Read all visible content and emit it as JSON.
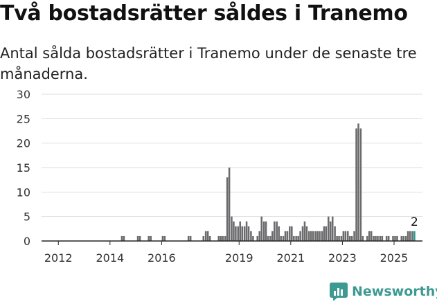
{
  "header": {
    "title": "Två bostadsrätter såldes i Tranemo",
    "subtitle": "Antal sålda bostadsrätter i Tranemo under de senaste tre månaderna."
  },
  "brand": {
    "name": "Newsworthy",
    "icon": "newsworthy-chart-logo-icon",
    "color": "#3d9a92"
  },
  "colors": {
    "bar": "#6b6b6d",
    "highlight": "#2a9d8f",
    "grid": "#dddddd",
    "axis": "#222222"
  },
  "chart_data": {
    "type": "bar",
    "x_unit": "decimal year (monthly bars)",
    "ylim": [
      0,
      30
    ],
    "yticks": [
      0,
      5,
      10,
      15,
      20,
      25,
      30
    ],
    "xlim": [
      2011.35,
      2026.1
    ],
    "xticks": [
      {
        "value": 2012.0,
        "label": "2012"
      },
      {
        "value": 2014.0,
        "label": "2014"
      },
      {
        "value": 2016.0,
        "label": "2016"
      },
      {
        "value": 2019.0,
        "label": "2019"
      },
      {
        "value": 2021.0,
        "label": "2021"
      },
      {
        "value": 2023.0,
        "label": "2023"
      },
      {
        "value": 2025.0,
        "label": "2025"
      }
    ],
    "grid": true,
    "last_value_label": "2",
    "bars": [
      [
        2014.46,
        1
      ],
      [
        2014.54,
        1
      ],
      [
        2015.08,
        1
      ],
      [
        2015.16,
        1
      ],
      [
        2015.5,
        1
      ],
      [
        2015.58,
        1
      ],
      [
        2016.04,
        1
      ],
      [
        2016.12,
        1
      ],
      [
        2017.04,
        1
      ],
      [
        2017.12,
        1
      ],
      [
        2017.62,
        1
      ],
      [
        2017.71,
        2
      ],
      [
        2017.79,
        2
      ],
      [
        2017.87,
        1
      ],
      [
        2018.21,
        1
      ],
      [
        2018.29,
        1
      ],
      [
        2018.37,
        1
      ],
      [
        2018.46,
        1
      ],
      [
        2018.54,
        13
      ],
      [
        2018.62,
        15
      ],
      [
        2018.71,
        5
      ],
      [
        2018.79,
        4
      ],
      [
        2018.87,
        3
      ],
      [
        2018.96,
        3
      ],
      [
        2019.04,
        4
      ],
      [
        2019.12,
        3
      ],
      [
        2019.21,
        3
      ],
      [
        2019.29,
        4
      ],
      [
        2019.37,
        3
      ],
      [
        2019.46,
        2
      ],
      [
        2019.54,
        1
      ],
      [
        2019.62,
        0
      ],
      [
        2019.71,
        1
      ],
      [
        2019.79,
        2
      ],
      [
        2019.87,
        5
      ],
      [
        2019.96,
        4
      ],
      [
        2020.04,
        4
      ],
      [
        2020.12,
        1
      ],
      [
        2020.21,
        1
      ],
      [
        2020.29,
        2
      ],
      [
        2020.37,
        4
      ],
      [
        2020.46,
        4
      ],
      [
        2020.54,
        3
      ],
      [
        2020.62,
        1
      ],
      [
        2020.71,
        1
      ],
      [
        2020.79,
        2
      ],
      [
        2020.87,
        2
      ],
      [
        2020.96,
        3
      ],
      [
        2021.04,
        3
      ],
      [
        2021.12,
        1
      ],
      [
        2021.21,
        1
      ],
      [
        2021.29,
        1
      ],
      [
        2021.37,
        2
      ],
      [
        2021.46,
        3
      ],
      [
        2021.54,
        4
      ],
      [
        2021.62,
        3
      ],
      [
        2021.71,
        2
      ],
      [
        2021.79,
        2
      ],
      [
        2021.87,
        2
      ],
      [
        2021.96,
        2
      ],
      [
        2022.04,
        2
      ],
      [
        2022.12,
        2
      ],
      [
        2022.21,
        2
      ],
      [
        2022.29,
        3
      ],
      [
        2022.37,
        3
      ],
      [
        2022.46,
        5
      ],
      [
        2022.54,
        4
      ],
      [
        2022.62,
        5
      ],
      [
        2022.71,
        3
      ],
      [
        2022.79,
        1
      ],
      [
        2022.87,
        1
      ],
      [
        2022.96,
        1
      ],
      [
        2023.04,
        2
      ],
      [
        2023.12,
        2
      ],
      [
        2023.21,
        2
      ],
      [
        2023.29,
        1
      ],
      [
        2023.37,
        1
      ],
      [
        2023.46,
        2
      ],
      [
        2023.54,
        23
      ],
      [
        2023.62,
        24
      ],
      [
        2023.71,
        23
      ],
      [
        2023.79,
        1
      ],
      [
        2023.87,
        0
      ],
      [
        2023.96,
        1
      ],
      [
        2024.04,
        2
      ],
      [
        2024.12,
        2
      ],
      [
        2024.21,
        1
      ],
      [
        2024.29,
        1
      ],
      [
        2024.37,
        1
      ],
      [
        2024.46,
        1
      ],
      [
        2024.54,
        1
      ],
      [
        2024.62,
        0
      ],
      [
        2024.71,
        1
      ],
      [
        2024.79,
        1
      ],
      [
        2024.87,
        0
      ],
      [
        2024.96,
        1
      ],
      [
        2025.04,
        1
      ],
      [
        2025.12,
        1
      ],
      [
        2025.21,
        0
      ],
      [
        2025.29,
        1
      ],
      [
        2025.37,
        1
      ],
      [
        2025.46,
        1
      ],
      [
        2025.54,
        2
      ],
      [
        2025.62,
        2
      ],
      [
        2025.71,
        2
      ],
      [
        2025.79,
        2
      ]
    ]
  }
}
